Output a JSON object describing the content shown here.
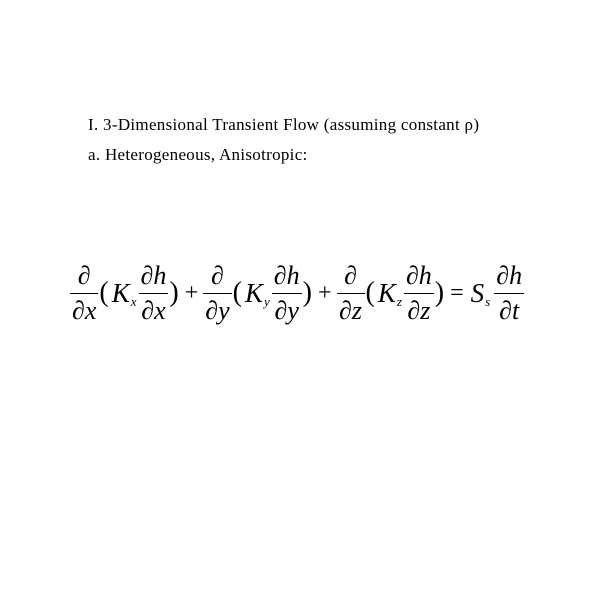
{
  "document": {
    "background_color": "#ffffff",
    "text_color": "#000000",
    "font_family": "Times New Roman",
    "heading": {
      "line1_prefix": "I. 3-Dimensional Transient Flow (assuming constant ",
      "rho": "ρ",
      "line1_suffix": ")",
      "line2": "a. Heterogeneous, Anisotropic:",
      "font_size_pt": 13
    },
    "equation": {
      "type": "pde",
      "description": "3D transient groundwater flow equation, heterogeneous anisotropic",
      "partial_symbol": "∂",
      "dependent_var": "h",
      "time_var": "t",
      "storage_coef": {
        "symbol": "S",
        "subscript": "s"
      },
      "terms": [
        {
          "space_var": "x",
          "K_symbol": "K",
          "K_subscript": "x"
        },
        {
          "space_var": "y",
          "K_symbol": "K",
          "K_subscript": "y"
        },
        {
          "space_var": "z",
          "K_symbol": "K",
          "K_subscript": "z"
        }
      ],
      "operators": {
        "plus": "+",
        "equals": "="
      },
      "paren_open": "(",
      "paren_close": ")",
      "font_size_main_pt": 20,
      "font_size_sub_pt": 10,
      "line_color": "#000000"
    }
  }
}
